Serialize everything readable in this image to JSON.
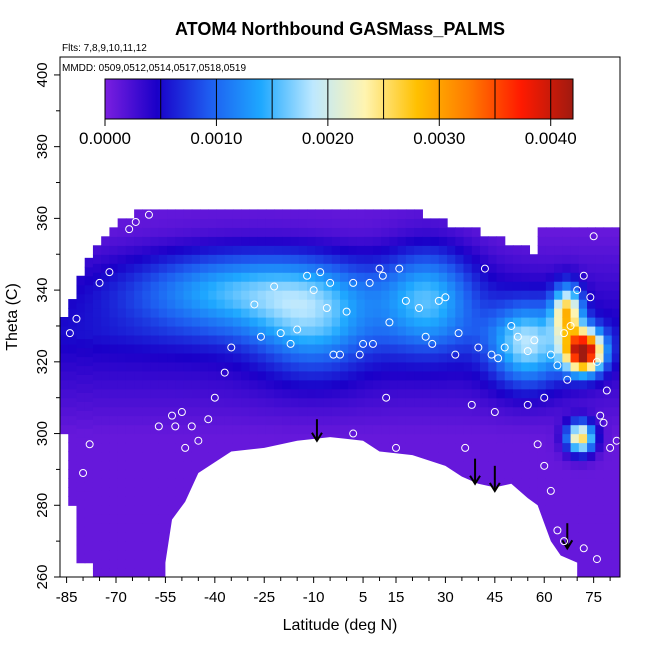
{
  "chart_data": {
    "type": "heatmap",
    "title": "ATOM4 Northbound GASMass_PALMS",
    "flights_label": "Flts: 7,8,9,10,11,12",
    "dates_label": "MMDD: 0509,0512,0514,0517,0518,0519",
    "xlabel": "Latitude (deg N)",
    "ylabel": "Theta (C)",
    "xlim": [
      -87,
      83
    ],
    "ylim": [
      260,
      405
    ],
    "x_ticks": [
      -85,
      -70,
      -55,
      -40,
      -25,
      -10,
      5,
      15,
      30,
      45,
      60,
      75
    ],
    "y_ticks": [
      260,
      280,
      300,
      320,
      340,
      360,
      380,
      400
    ],
    "colorbar": {
      "min": 0.0,
      "max": 0.0042,
      "tick_values": [
        0.0,
        0.001,
        0.002,
        0.003,
        0.004
      ],
      "tick_labels": [
        "0.0000",
        "0.0010",
        "0.0020",
        "0.0030",
        "0.0040"
      ],
      "colors": [
        "#7b1fe0",
        "#1a00c8",
        "#1e5cf0",
        "#1ea8ff",
        "#bde8ff",
        "#fff4b0",
        "#ffc000",
        "#ff7a00",
        "#ff1a00",
        "#a01a10"
      ]
    },
    "surface_boundary": [
      [
        -55,
        264
      ],
      [
        -53,
        276
      ],
      [
        -49,
        281
      ],
      [
        -45,
        289
      ],
      [
        -40,
        292
      ],
      [
        -35,
        295
      ],
      [
        -25,
        296
      ],
      [
        -15,
        298
      ],
      [
        -5,
        299
      ],
      [
        0,
        298.5
      ],
      [
        5,
        298
      ],
      [
        10,
        295
      ],
      [
        20,
        294
      ],
      [
        30,
        291
      ],
      [
        35,
        288
      ],
      [
        40,
        286
      ],
      [
        45,
        285
      ],
      [
        50,
        286
      ],
      [
        55,
        282
      ],
      [
        58,
        280
      ],
      [
        60,
        275
      ],
      [
        62,
        270
      ],
      [
        65,
        266
      ],
      [
        70,
        264
      ]
    ],
    "arrows": [
      {
        "x": -9,
        "y_top": 304,
        "y_bottom": 298
      },
      {
        "x": 39,
        "y_top": 293,
        "y_bottom": 286
      },
      {
        "x": 45,
        "y_top": 291,
        "y_bottom": 284
      },
      {
        "x": 67,
        "y_top": 275,
        "y_bottom": 268
      }
    ],
    "fields": {
      "background_value": 0.0001,
      "hotspots": [
        {
          "lat": 72,
          "theta": 323,
          "value": 0.004,
          "sx": 4,
          "sy": 4
        },
        {
          "lat": 71,
          "theta": 299,
          "value": 0.0025,
          "sx": 3,
          "sy": 3
        },
        {
          "lat": 67,
          "theta": 334,
          "value": 0.0022,
          "sx": 3,
          "sy": 5
        },
        {
          "lat": -30,
          "theta": 340,
          "value": 0.0012,
          "sx": 25,
          "sy": 8
        },
        {
          "lat": 25,
          "theta": 338,
          "value": 0.0011,
          "sx": 10,
          "sy": 10
        },
        {
          "lat": 55,
          "theta": 325,
          "value": 0.0014,
          "sx": 8,
          "sy": 8
        },
        {
          "lat": -10,
          "theta": 330,
          "value": 0.0008,
          "sx": 12,
          "sy": 10
        }
      ]
    },
    "observation_points": [
      [
        -86,
        294
      ],
      [
        -84,
        328
      ],
      [
        -82,
        332
      ],
      [
        -80,
        289
      ],
      [
        -78,
        297
      ],
      [
        -75,
        342
      ],
      [
        -72,
        345
      ],
      [
        -66,
        357
      ],
      [
        -64,
        359
      ],
      [
        -60,
        361
      ],
      [
        -57,
        302
      ],
      [
        -53,
        305
      ],
      [
        -52,
        302
      ],
      [
        -50,
        306
      ],
      [
        -49,
        296
      ],
      [
        -47,
        302
      ],
      [
        -45,
        298
      ],
      [
        -42,
        304
      ],
      [
        -40,
        310
      ],
      [
        -38,
        289
      ],
      [
        -37,
        317
      ],
      [
        -35,
        324
      ],
      [
        -32,
        292
      ],
      [
        -28,
        336
      ],
      [
        -26,
        327
      ],
      [
        -22,
        341
      ],
      [
        -20,
        328
      ],
      [
        -17,
        325
      ],
      [
        -15,
        329
      ],
      [
        -12,
        344
      ],
      [
        -10,
        340
      ],
      [
        -8,
        345
      ],
      [
        -6,
        335
      ],
      [
        -5,
        342
      ],
      [
        -4,
        322
      ],
      [
        -2,
        322
      ],
      [
        0,
        334
      ],
      [
        2,
        342
      ],
      [
        4,
        322
      ],
      [
        5,
        325
      ],
      [
        7,
        342
      ],
      [
        10,
        346
      ],
      [
        11,
        344
      ],
      [
        13,
        331
      ],
      [
        16,
        346
      ],
      [
        18,
        337
      ],
      [
        22,
        335
      ],
      [
        24,
        327
      ],
      [
        26,
        325
      ],
      [
        28,
        337
      ],
      [
        30,
        338
      ],
      [
        33,
        322
      ],
      [
        34,
        328
      ],
      [
        36,
        296
      ],
      [
        40,
        324
      ],
      [
        42,
        346
      ],
      [
        44,
        322
      ],
      [
        46,
        321
      ],
      [
        48,
        324
      ],
      [
        50,
        330
      ],
      [
        52,
        327
      ],
      [
        55,
        323
      ],
      [
        57,
        326
      ],
      [
        60,
        310
      ],
      [
        62,
        322
      ],
      [
        64,
        319
      ],
      [
        66,
        328
      ],
      [
        67,
        315
      ],
      [
        68,
        330
      ],
      [
        70,
        340
      ],
      [
        72,
        344
      ],
      [
        74,
        338
      ],
      [
        75,
        355
      ],
      [
        76,
        320
      ],
      [
        77,
        305
      ],
      [
        78,
        303
      ],
      [
        79,
        312
      ],
      [
        80,
        296
      ],
      [
        82,
        298
      ],
      [
        85,
        272
      ],
      [
        -20,
        290
      ],
      [
        -18,
        285
      ],
      [
        15,
        296
      ],
      [
        20,
        292
      ],
      [
        45,
        306
      ],
      [
        60,
        291
      ],
      [
        62,
        284
      ],
      [
        64,
        273
      ],
      [
        66,
        270
      ],
      [
        72,
        268
      ],
      [
        76,
        265
      ],
      [
        2,
        300
      ],
      [
        8,
        325
      ],
      [
        12,
        310
      ],
      [
        38,
        308
      ],
      [
        55,
        308
      ],
      [
        58,
        297
      ]
    ]
  }
}
